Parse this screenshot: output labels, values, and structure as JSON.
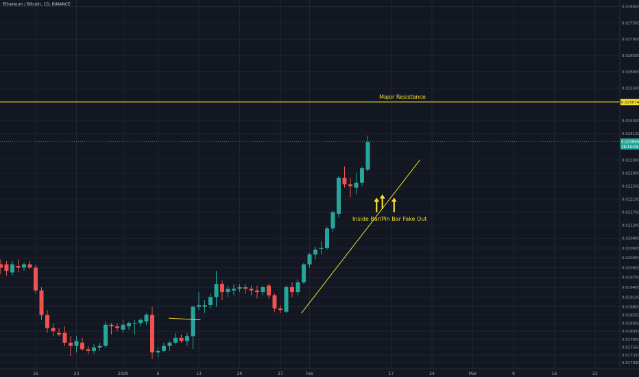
{
  "header": {
    "symbol_title": "Ethereum / Bitcoin, 1D, BINANCE"
  },
  "colors": {
    "background": "#131722",
    "grid": "#1f2533",
    "up": "#26a69a",
    "down": "#ef5350",
    "resistance": "#f5e02d",
    "annotation": "#f5e02d",
    "trendline": "#f5e02d",
    "axis_text": "#a3a6af",
    "last_price_line": "#26a69a"
  },
  "chart_data": {
    "type": "candlestick",
    "y_axis": {
      "side": "right",
      "ylim": [
        0.0169,
        0.0282
      ],
      "tick_labels": [
        "0.028000",
        "0.027500",
        "0.027000",
        "0.026500",
        "0.026000",
        "0.025500",
        "0.024500",
        "0.024100",
        "0.023300",
        "0.022900",
        "0.022500",
        "0.022100",
        "0.021700",
        "0.021300",
        "0.020900",
        "0.020600",
        "0.020300",
        "0.020000",
        "0.019700",
        "0.019400",
        "0.019100",
        "0.018800",
        "0.018550",
        "0.018300",
        "0.018050",
        "0.017800",
        "0.017560",
        "0.017320",
        "0.017090"
      ],
      "tick_values": [
        0.028,
        0.0275,
        0.027,
        0.0265,
        0.026,
        0.0255,
        0.0245,
        0.0241,
        0.0233,
        0.0229,
        0.0225,
        0.0221,
        0.0217,
        0.0213,
        0.0209,
        0.0206,
        0.0203,
        0.02,
        0.0197,
        0.0194,
        0.0191,
        0.0188,
        0.01855,
        0.0183,
        0.01805,
        0.0178,
        0.01756,
        0.01732,
        0.01709
      ],
      "price_labels": [
        {
          "label": "0.025074",
          "value": 0.025074,
          "style": "resistance"
        },
        {
          "label": "0.023865",
          "value": 0.023865,
          "style": "last"
        },
        {
          "label": "16:19:09",
          "value": 0.02371,
          "style": "last"
        }
      ]
    },
    "x_axis": {
      "labels": [
        "16",
        "23",
        "2020",
        "6",
        "13",
        "20",
        "27",
        "Feb",
        "17",
        "24",
        "Mar",
        "9",
        "16",
        "23"
      ],
      "label_day_index": [
        0,
        7,
        15,
        21,
        28,
        35,
        42,
        47,
        61,
        68,
        75,
        82,
        89,
        96
      ]
    },
    "candles_start_index": -7,
    "candles": [
      {
        "o": 0.02,
        "h": 0.02016,
        "l": 0.01985,
        "c": 0.02
      },
      {
        "o": 0.0201,
        "h": 0.02025,
        "l": 0.0198,
        "c": 0.02
      },
      {
        "o": 0.0201,
        "h": 0.0202,
        "l": 0.01975,
        "c": 0.0199
      },
      {
        "o": 0.01985,
        "h": 0.0202,
        "l": 0.01975,
        "c": 0.0201
      },
      {
        "o": 0.02005,
        "h": 0.02025,
        "l": 0.01985,
        "c": 0.02
      },
      {
        "o": 0.02,
        "h": 0.02015,
        "l": 0.0199,
        "c": 0.0201
      },
      {
        "o": 0.0201,
        "h": 0.0202,
        "l": 0.01995,
        "c": 0.02
      },
      {
        "o": 0.02,
        "h": 0.02008,
        "l": 0.0192,
        "c": 0.0193
      },
      {
        "o": 0.0193,
        "h": 0.0194,
        "l": 0.0184,
        "c": 0.01855
      },
      {
        "o": 0.01855,
        "h": 0.0187,
        "l": 0.018,
        "c": 0.01815
      },
      {
        "o": 0.01815,
        "h": 0.0183,
        "l": 0.0179,
        "c": 0.01805
      },
      {
        "o": 0.018,
        "h": 0.01815,
        "l": 0.0179,
        "c": 0.01795
      },
      {
        "o": 0.018,
        "h": 0.0182,
        "l": 0.0176,
        "c": 0.0177
      },
      {
        "o": 0.0177,
        "h": 0.0179,
        "l": 0.0173,
        "c": 0.0176
      },
      {
        "o": 0.0176,
        "h": 0.0179,
        "l": 0.0174,
        "c": 0.01775
      },
      {
        "o": 0.0177,
        "h": 0.01785,
        "l": 0.01745,
        "c": 0.0175
      },
      {
        "o": 0.0175,
        "h": 0.0176,
        "l": 0.01735,
        "c": 0.01745
      },
      {
        "o": 0.01745,
        "h": 0.01765,
        "l": 0.01735,
        "c": 0.01755
      },
      {
        "o": 0.01755,
        "h": 0.0177,
        "l": 0.01745,
        "c": 0.0176
      },
      {
        "o": 0.0176,
        "h": 0.01835,
        "l": 0.01755,
        "c": 0.01825
      },
      {
        "o": 0.01825,
        "h": 0.0183,
        "l": 0.01795,
        "c": 0.0182
      },
      {
        "o": 0.0182,
        "h": 0.0183,
        "l": 0.01805,
        "c": 0.01815
      },
      {
        "o": 0.0181,
        "h": 0.0184,
        "l": 0.018,
        "c": 0.01825
      },
      {
        "o": 0.0182,
        "h": 0.01835,
        "l": 0.0181,
        "c": 0.0183
      },
      {
        "o": 0.0183,
        "h": 0.0184,
        "l": 0.01795,
        "c": 0.0183
      },
      {
        "o": 0.0183,
        "h": 0.01845,
        "l": 0.0182,
        "c": 0.0184
      },
      {
        "o": 0.01835,
        "h": 0.0186,
        "l": 0.01825,
        "c": 0.01855
      },
      {
        "o": 0.01855,
        "h": 0.0188,
        "l": 0.0172,
        "c": 0.0174
      },
      {
        "o": 0.0174,
        "h": 0.01755,
        "l": 0.01725,
        "c": 0.01745
      },
      {
        "o": 0.01745,
        "h": 0.0177,
        "l": 0.0174,
        "c": 0.0176
      },
      {
        "o": 0.0176,
        "h": 0.01775,
        "l": 0.01745,
        "c": 0.0177
      },
      {
        "o": 0.0177,
        "h": 0.018,
        "l": 0.01765,
        "c": 0.01785
      },
      {
        "o": 0.01785,
        "h": 0.01795,
        "l": 0.0177,
        "c": 0.01775
      },
      {
        "o": 0.01775,
        "h": 0.018,
        "l": 0.0176,
        "c": 0.0179
      },
      {
        "o": 0.0179,
        "h": 0.01885,
        "l": 0.0175,
        "c": 0.0188
      },
      {
        "o": 0.0188,
        "h": 0.01925,
        "l": 0.0187,
        "c": 0.01885
      },
      {
        "o": 0.0188,
        "h": 0.019,
        "l": 0.0186,
        "c": 0.01885
      },
      {
        "o": 0.01885,
        "h": 0.0192,
        "l": 0.01875,
        "c": 0.0191
      },
      {
        "o": 0.0191,
        "h": 0.0199,
        "l": 0.0188,
        "c": 0.0195
      },
      {
        "o": 0.0195,
        "h": 0.0196,
        "l": 0.019,
        "c": 0.01925
      },
      {
        "o": 0.01925,
        "h": 0.01945,
        "l": 0.0191,
        "c": 0.01935
      },
      {
        "o": 0.0193,
        "h": 0.0195,
        "l": 0.01915,
        "c": 0.01935
      },
      {
        "o": 0.01935,
        "h": 0.0195,
        "l": 0.01925,
        "c": 0.0194
      },
      {
        "o": 0.0194,
        "h": 0.0195,
        "l": 0.0192,
        "c": 0.01935
      },
      {
        "o": 0.01935,
        "h": 0.01945,
        "l": 0.01915,
        "c": 0.0193
      },
      {
        "o": 0.0193,
        "h": 0.01945,
        "l": 0.01905,
        "c": 0.01925
      },
      {
        "o": 0.01925,
        "h": 0.01945,
        "l": 0.01915,
        "c": 0.0194
      },
      {
        "o": 0.01945,
        "h": 0.0195,
        "l": 0.01905,
        "c": 0.01915
      },
      {
        "o": 0.01915,
        "h": 0.0192,
        "l": 0.01865,
        "c": 0.01875
      },
      {
        "o": 0.01875,
        "h": 0.01885,
        "l": 0.0186,
        "c": 0.0187
      },
      {
        "o": 0.01865,
        "h": 0.01945,
        "l": 0.0186,
        "c": 0.0194
      },
      {
        "o": 0.0194,
        "h": 0.01955,
        "l": 0.0191,
        "c": 0.01925
      },
      {
        "o": 0.01925,
        "h": 0.01965,
        "l": 0.01915,
        "c": 0.01955
      },
      {
        "o": 0.01955,
        "h": 0.02015,
        "l": 0.0195,
        "c": 0.0201
      },
      {
        "o": 0.0201,
        "h": 0.02045,
        "l": 0.02,
        "c": 0.0204
      },
      {
        "o": 0.0204,
        "h": 0.02065,
        "l": 0.02025,
        "c": 0.02055
      },
      {
        "o": 0.0206,
        "h": 0.0208,
        "l": 0.0204,
        "c": 0.0206
      },
      {
        "o": 0.0206,
        "h": 0.02125,
        "l": 0.02055,
        "c": 0.0212
      },
      {
        "o": 0.0212,
        "h": 0.02175,
        "l": 0.0211,
        "c": 0.0217
      },
      {
        "o": 0.02165,
        "h": 0.0228,
        "l": 0.02155,
        "c": 0.02275
      },
      {
        "o": 0.02275,
        "h": 0.0231,
        "l": 0.02245,
        "c": 0.02255
      },
      {
        "o": 0.02255,
        "h": 0.02275,
        "l": 0.02215,
        "c": 0.0225
      },
      {
        "o": 0.02245,
        "h": 0.0229,
        "l": 0.02225,
        "c": 0.0226
      },
      {
        "o": 0.0226,
        "h": 0.0231,
        "l": 0.0225,
        "c": 0.02305
      },
      {
        "o": 0.023,
        "h": 0.02405,
        "l": 0.02295,
        "c": 0.02385
      }
    ],
    "resistance": {
      "value": 0.025074,
      "label": "Major Resistance"
    },
    "trendline": {
      "from": {
        "day": 47,
        "value": 0.0186
      },
      "to": {
        "day": 65,
        "value": 0.0233
      }
    },
    "small_trendline": {
      "from": {
        "day": 24,
        "value": 0.01845
      },
      "to": {
        "day": 29,
        "value": 0.0184
      }
    },
    "annotations": [
      {
        "text": "Inside Bar/Pin Bar Fake Out",
        "day": 59,
        "value": 0.0215
      }
    ],
    "arrows": [
      {
        "day": 58.5,
        "from": 0.0217,
        "to": 0.0221
      },
      {
        "day": 59.5,
        "from": 0.0218,
        "to": 0.0222
      },
      {
        "day": 61.5,
        "from": 0.0217,
        "to": 0.0221
      }
    ]
  }
}
